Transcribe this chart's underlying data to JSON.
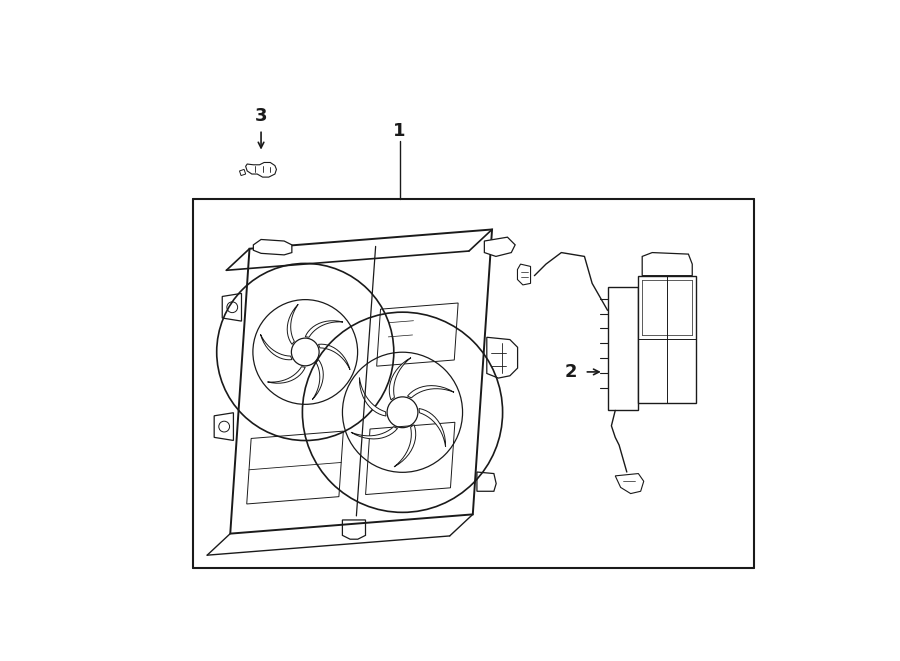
{
  "bg_color": "#ffffff",
  "line_color": "#1a1a1a",
  "fig_width": 9.0,
  "fig_height": 6.61,
  "dpi": 100,
  "label_fontsize": 13,
  "label_1": "1",
  "label_2": "2",
  "label_3": "3"
}
